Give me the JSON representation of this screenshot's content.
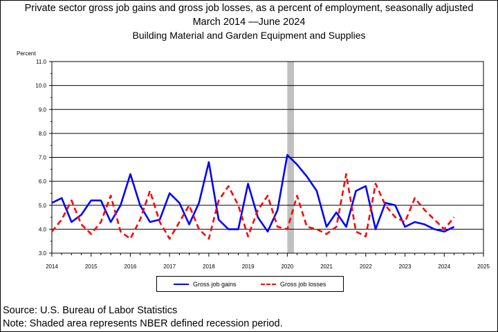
{
  "title": {
    "line1": "Private sector gross job gains and gross job losses, as a percent of employment, seasonally adjusted",
    "line2": "March 2014 —June 2024",
    "line3": "Building Material and Garden Equipment and Supplies"
  },
  "footer": {
    "source": "Source: U.S. Bureau of Labor Statistics",
    "note": "Note: Shaded area represents NBER defined recession period."
  },
  "legend": {
    "gains": "Gross job gains",
    "losses": "Gross job losses"
  },
  "colors": {
    "gains": "#0000ff",
    "losses": "#ff0000",
    "recession": "#c0c0c0",
    "grid": "#000000"
  },
  "chart_data": {
    "type": "line",
    "ylabel": "Percent",
    "ylim": [
      3.0,
      11.0
    ],
    "xlim": [
      2014,
      2025
    ],
    "yticks": [
      "3.0",
      "4.0",
      "5.0",
      "6.0",
      "7.0",
      "8.0",
      "9.0",
      "10.0",
      "11.0"
    ],
    "xticks": [
      "2014",
      "2015",
      "2016",
      "2017",
      "2018",
      "2019",
      "2020",
      "2021",
      "2022",
      "2023",
      "2024",
      "2025"
    ],
    "grid": true,
    "legend_position": "bottom",
    "recession": [
      2020.0,
      2020.17
    ],
    "x": [
      2014.0,
      2014.25,
      2014.5,
      2014.75,
      2015.0,
      2015.25,
      2015.5,
      2015.75,
      2016.0,
      2016.25,
      2016.5,
      2016.75,
      2017.0,
      2017.25,
      2017.5,
      2017.75,
      2018.0,
      2018.25,
      2018.5,
      2018.75,
      2019.0,
      2019.25,
      2019.5,
      2019.75,
      2020.0,
      2020.25,
      2020.5,
      2020.75,
      2021.0,
      2021.25,
      2021.5,
      2021.75,
      2022.0,
      2022.25,
      2022.5,
      2022.75,
      2023.0,
      2023.25,
      2023.5,
      2023.75,
      2024.0,
      2024.25
    ],
    "series": [
      {
        "name": "Gross job gains",
        "style": "solid",
        "values": [
          5.1,
          5.3,
          4.3,
          4.6,
          5.2,
          5.2,
          4.3,
          5.0,
          6.3,
          5.0,
          4.3,
          4.4,
          5.5,
          5.1,
          4.2,
          5.1,
          6.8,
          4.4,
          4.0,
          4.0,
          5.9,
          4.5,
          3.9,
          4.8,
          7.1,
          6.7,
          6.2,
          5.6,
          4.1,
          4.7,
          4.1,
          5.6,
          5.8,
          4.0,
          5.1,
          5.0,
          4.1,
          4.3,
          4.2,
          4.0,
          3.9,
          4.1
        ]
      },
      {
        "name": "Gross job losses",
        "style": "dashed",
        "values": [
          3.9,
          4.4,
          5.2,
          4.2,
          3.8,
          4.3,
          5.4,
          3.9,
          3.6,
          4.4,
          5.6,
          4.3,
          3.6,
          4.3,
          5.0,
          4.0,
          3.6,
          5.2,
          5.8,
          5.0,
          3.7,
          4.8,
          5.4,
          4.1,
          4.0,
          5.4,
          4.1,
          4.0,
          3.8,
          4.1,
          6.3,
          3.9,
          3.7,
          5.9,
          5.0,
          4.5,
          4.3,
          5.3,
          4.8,
          4.4,
          4.0,
          4.5
        ]
      }
    ]
  }
}
